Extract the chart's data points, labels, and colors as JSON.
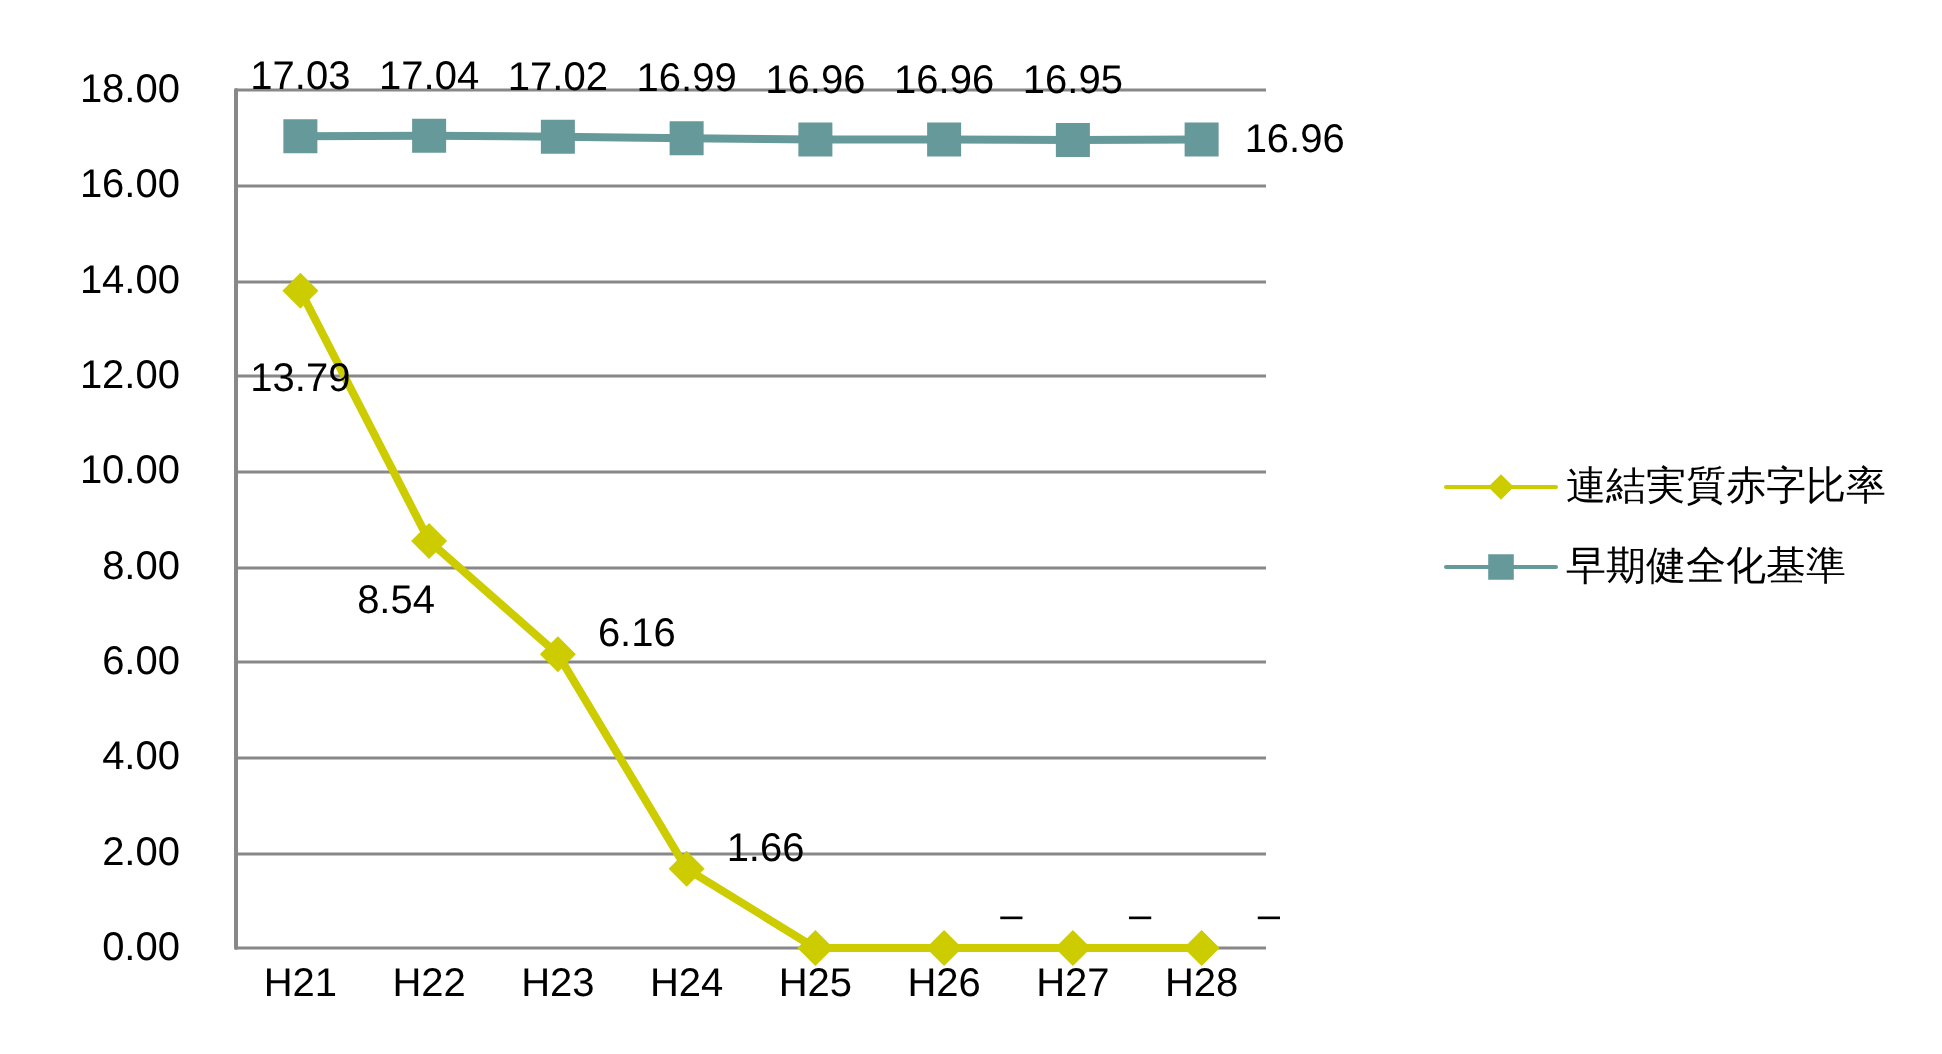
{
  "chart_data": {
    "type": "line",
    "categories": [
      "H21",
      "H22",
      "H23",
      "H24",
      "H25",
      "H26",
      "H27",
      "H28"
    ],
    "ylim": [
      0,
      18
    ],
    "yticks": [
      {
        "value": 0,
        "label": "0.00"
      },
      {
        "value": 2,
        "label": "2.00"
      },
      {
        "value": 4,
        "label": "4.00"
      },
      {
        "value": 6,
        "label": "6.00"
      },
      {
        "value": 8,
        "label": "8.00"
      },
      {
        "value": 10,
        "label": "10.00"
      },
      {
        "value": 12,
        "label": "12.00"
      },
      {
        "value": 14,
        "label": "14.00"
      },
      {
        "value": 16,
        "label": "16.00"
      },
      {
        "value": 18,
        "label": "18.00"
      }
    ],
    "grid": "y",
    "legend": "right",
    "series": [
      {
        "name": "連結実質赤字比率",
        "color": "#cccc00",
        "marker": "diamond",
        "values": [
          13.79,
          8.54,
          6.16,
          1.66,
          0,
          0,
          0,
          0
        ],
        "value_labels": [
          "13.79",
          "8.54",
          "6.16",
          "1.66",
          null,
          "–",
          "–",
          "–"
        ]
      },
      {
        "name": "早期健全化基準",
        "color": "#669999",
        "marker": "square",
        "values": [
          17.03,
          17.04,
          17.02,
          16.99,
          16.96,
          16.96,
          16.95,
          16.96
        ],
        "value_labels": [
          "17.03",
          "17.04",
          "17.02",
          "16.99",
          "16.96",
          "16.96",
          "16.95",
          "16.96"
        ]
      }
    ]
  }
}
